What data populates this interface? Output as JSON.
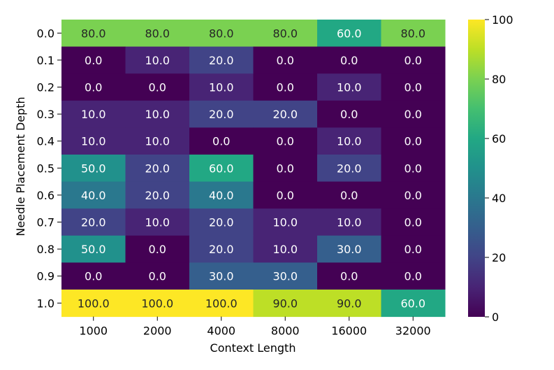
{
  "chart_data": {
    "type": "heatmap",
    "title": "",
    "xlabel": "Context Length",
    "ylabel": "Needle Placement Depth",
    "x_categories": [
      "1000",
      "2000",
      "4000",
      "8000",
      "16000",
      "32000"
    ],
    "y_categories": [
      "0.0",
      "0.1",
      "0.2",
      "0.3",
      "0.4",
      "0.5",
      "0.6",
      "0.7",
      "0.8",
      "0.9",
      "1.0"
    ],
    "values": [
      [
        80.0,
        80.0,
        80.0,
        80.0,
        60.0,
        80.0
      ],
      [
        0.0,
        10.0,
        20.0,
        0.0,
        0.0,
        0.0
      ],
      [
        0.0,
        0.0,
        10.0,
        0.0,
        10.0,
        0.0
      ],
      [
        10.0,
        10.0,
        20.0,
        20.0,
        0.0,
        0.0
      ],
      [
        10.0,
        10.0,
        0.0,
        0.0,
        10.0,
        0.0
      ],
      [
        50.0,
        20.0,
        60.0,
        0.0,
        20.0,
        0.0
      ],
      [
        40.0,
        20.0,
        40.0,
        0.0,
        0.0,
        0.0
      ],
      [
        20.0,
        10.0,
        20.0,
        10.0,
        10.0,
        0.0
      ],
      [
        50.0,
        0.0,
        20.0,
        10.0,
        30.0,
        0.0
      ],
      [
        0.0,
        0.0,
        30.0,
        30.0,
        0.0,
        0.0
      ],
      [
        100.0,
        100.0,
        100.0,
        90.0,
        90.0,
        60.0
      ]
    ],
    "value_range": [
      0,
      100
    ],
    "colormap": "viridis",
    "colorbar_ticks": [
      "0",
      "20",
      "40",
      "60",
      "80",
      "100"
    ],
    "colorbar_tick_values": [
      0,
      20,
      40,
      60,
      80,
      100
    ],
    "annotations": "cell values shown with one decimal",
    "grid": false
  }
}
